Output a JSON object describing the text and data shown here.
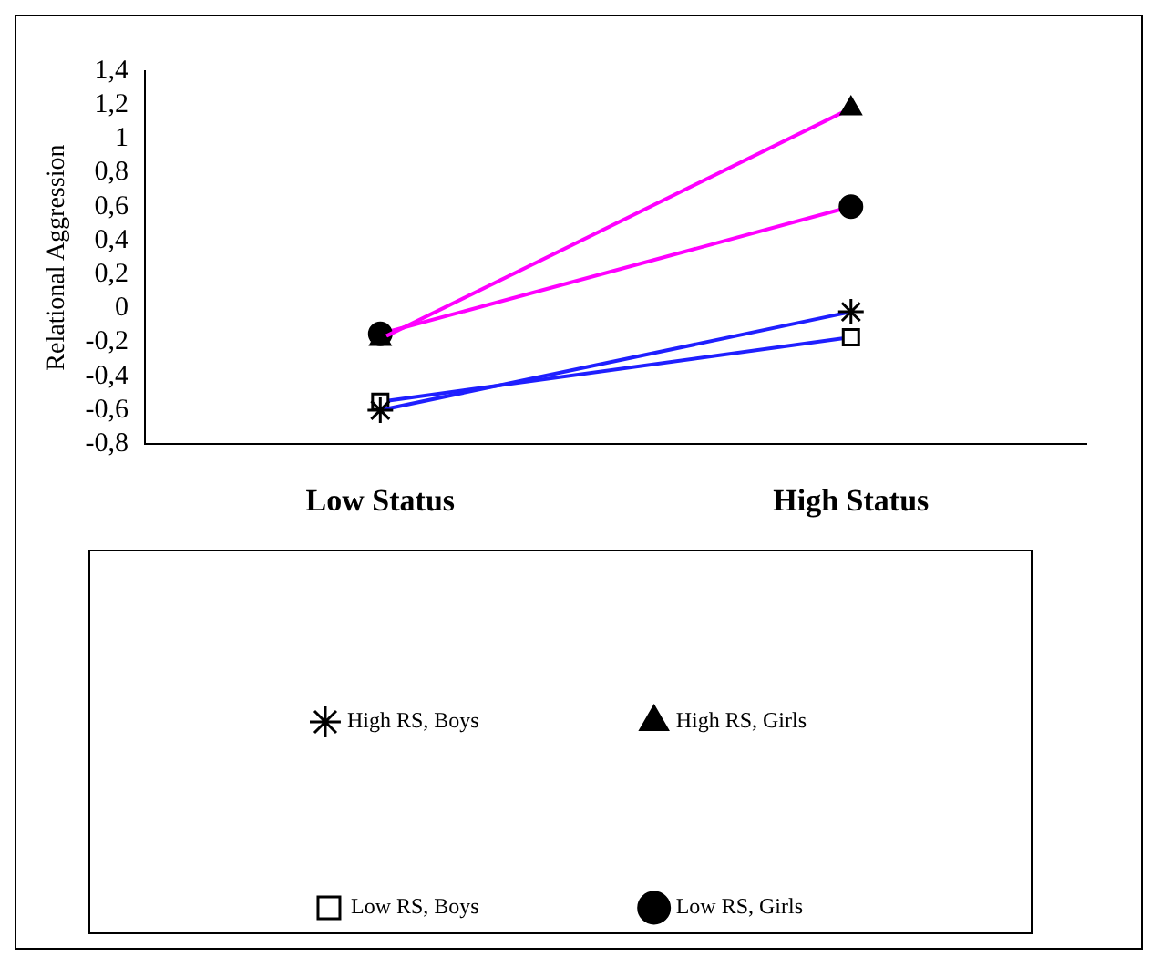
{
  "chart_data": {
    "type": "line",
    "ylabel": "Relational Aggression",
    "categories": [
      "Low Status",
      "High Status"
    ],
    "series": [
      {
        "name": "High RS, Boys",
        "color": "#1f1fff",
        "values": [
          -0.6,
          -0.02
        ],
        "marker": "cross"
      },
      {
        "name": "High RS, Girls",
        "color": "#ff00ff",
        "values": [
          -0.18,
          1.18
        ],
        "marker": "triangle"
      },
      {
        "name": "Low RS, Boys",
        "color": "#1f1fff",
        "values": [
          -0.55,
          -0.17
        ],
        "marker": "square"
      },
      {
        "name": "Low RS, Girls",
        "color": "#ff00ff",
        "values": [
          -0.15,
          0.6
        ],
        "marker": "circle"
      }
    ],
    "ylim": [
      -0.8,
      1.4
    ],
    "yticks": [
      {
        "value": -0.8,
        "label": "-0,8"
      },
      {
        "value": -0.6,
        "label": "-0,6"
      },
      {
        "value": -0.4,
        "label": "-0,4"
      },
      {
        "value": -0.2,
        "label": "-0,2"
      },
      {
        "value": 0,
        "label": "0"
      },
      {
        "value": 0.2,
        "label": "0,2"
      },
      {
        "value": 0.4,
        "label": "0,4"
      },
      {
        "value": 0.6,
        "label": "0,6"
      },
      {
        "value": 0.8,
        "label": "0,8"
      },
      {
        "value": 1,
        "label": "1"
      },
      {
        "value": 1.2,
        "label": "1,2"
      },
      {
        "value": 1.4,
        "label": "1,4"
      }
    ],
    "grid": false,
    "legend": "bottom",
    "line_style": "solid"
  }
}
